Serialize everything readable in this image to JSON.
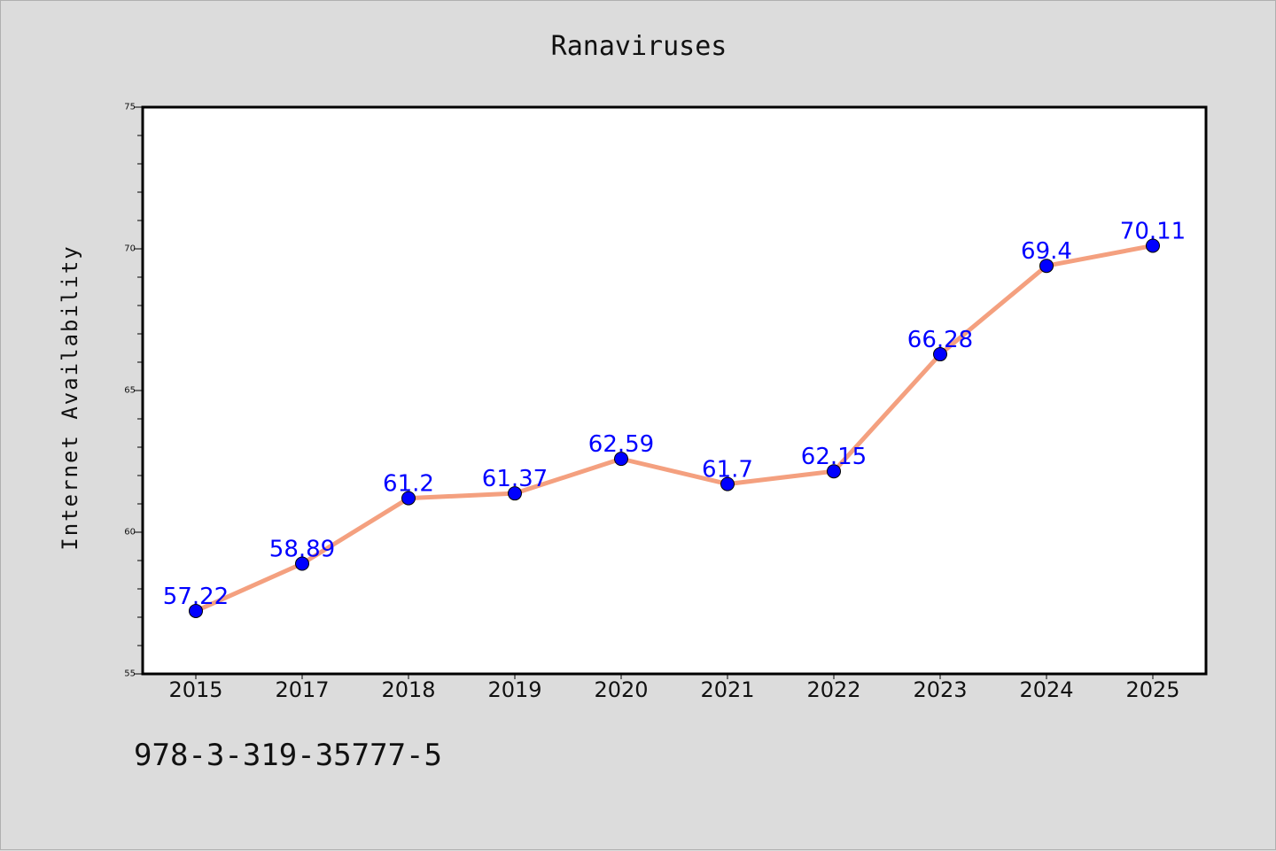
{
  "chart_data": {
    "type": "line",
    "title": "Ranaviruses",
    "xlabel": "",
    "ylabel": "Internet Availability",
    "categories": [
      "2015",
      "2017",
      "2018",
      "2019",
      "2020",
      "2021",
      "2022",
      "2023",
      "2024",
      "2025"
    ],
    "series": [
      {
        "values": [
          57.22,
          58.89,
          61.2,
          61.37,
          62.59,
          61.7,
          62.15,
          66.28,
          69.4,
          70.11
        ],
        "labels": [
          "57.22",
          "58.89",
          "61.2",
          "61.37",
          "62.59",
          "61.7",
          "62.15",
          "66.28",
          "69.4",
          "70.11"
        ]
      }
    ],
    "ylim": [
      55,
      75
    ],
    "yticks": [
      55,
      60,
      65,
      70,
      75
    ],
    "grid": false,
    "legend": "none",
    "colors": {
      "line": "#f4a07f",
      "marker": "#0000ff",
      "label": "#0000ff",
      "plot_background": "#ffffff",
      "figure_background": "#dcdcdc"
    }
  },
  "footer": {
    "isbn": "978-3-319-35777-5"
  }
}
